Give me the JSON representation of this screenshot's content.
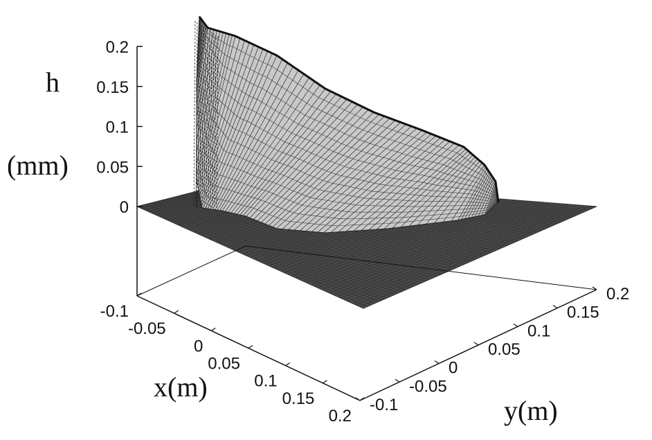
{
  "chart_data": {
    "type": "surface",
    "zlabel_line1": "h",
    "zlabel_line2": "(mm)",
    "xlabel": "x(m)",
    "ylabel": "y(m)",
    "xlim": [
      -0.1,
      0.2
    ],
    "ylim": [
      -0.1,
      0.2
    ],
    "zlim": [
      0,
      0.2
    ],
    "x_ticks": [
      "-0.1",
      "-0.05",
      "0",
      "0.05",
      "0.1",
      "0.15",
      "0.2"
    ],
    "y_ticks": [
      "-0.1",
      "-0.05",
      "0",
      "0.05",
      "0.1",
      "0.15",
      "0.2"
    ],
    "z_ticks": [
      "0",
      "0.05",
      "0.1",
      "0.15",
      "0.2"
    ],
    "z_tick_values": [
      0,
      0.05,
      0.1,
      0.15,
      0.2
    ],
    "grid": false,
    "mesh_color": "#3c3c3c",
    "surface_profile": {
      "peak_h_mm": 0.2,
      "ridge_along_x": [
        {
          "x": -0.03,
          "h": 0.2
        },
        {
          "x": 0.0,
          "h": 0.18
        },
        {
          "x": 0.05,
          "h": 0.14
        },
        {
          "x": 0.1,
          "h": 0.1
        },
        {
          "x": 0.15,
          "h": 0.06
        },
        {
          "x": 0.18,
          "h": 0.0
        }
      ],
      "flat_base_h": 0
    }
  }
}
